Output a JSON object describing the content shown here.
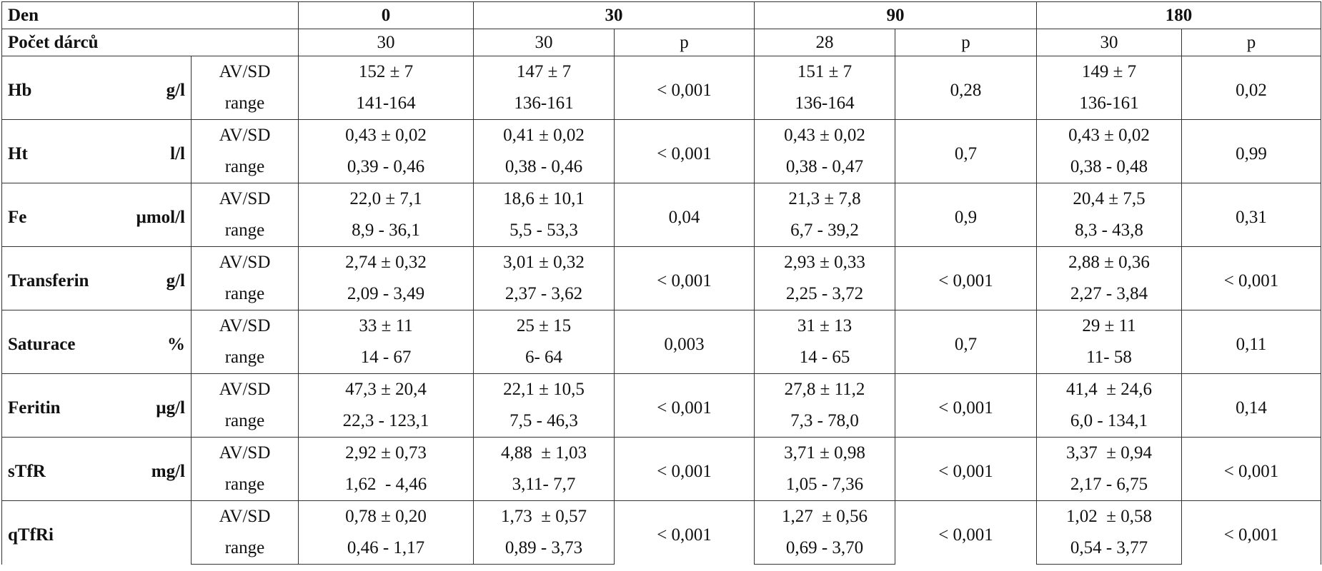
{
  "header": {
    "first": "Den",
    "days": [
      "0",
      "30",
      "90",
      "180"
    ]
  },
  "count_row": {
    "label": "Počet dárců",
    "cells": [
      "30",
      "30",
      "p",
      "28",
      "p",
      "30",
      "p"
    ]
  },
  "params": [
    {
      "name": "Hb",
      "unit": "g/l",
      "av": {
        "label": "AV/SD",
        "values": [
          "152 ± 7",
          "147 ± 7",
          "151 ± 7",
          "149 ± 7"
        ],
        "p": [
          "< 0,001",
          "0,28",
          "0,02"
        ]
      },
      "range": {
        "label": "range",
        "values": [
          "141-164",
          "136-161",
          "136-164",
          "136-161"
        ]
      }
    },
    {
      "name": "Ht",
      "unit": "l/l",
      "av": {
        "label": "AV/SD",
        "values": [
          "0,43 ± 0,02",
          "0,41 ± 0,02",
          "0,43 ± 0,02",
          "0,43 ± 0,02"
        ],
        "p": [
          "< 0,001",
          "0,7",
          "0,99"
        ]
      },
      "range": {
        "label": "range",
        "values": [
          "0,39 - 0,46",
          "0,38 - 0,46",
          "0,38 - 0,47",
          "0,38 - 0,48"
        ]
      }
    },
    {
      "name": "Fe",
      "unit": "μmol/l",
      "av": {
        "label": "AV/SD",
        "values": [
          "22,0 ± 7,1",
          "18,6 ± 10,1",
          "21,3 ± 7,8",
          "20,4 ± 7,5"
        ],
        "p": [
          "0,04",
          "0,9",
          "0,31"
        ]
      },
      "range": {
        "label": "range",
        "values": [
          "8,9 - 36,1",
          "5,5 - 53,3",
          "6,7 - 39,2",
          "8,3 - 43,8"
        ]
      }
    },
    {
      "name": "Transferin",
      "unit": "g/l",
      "av": {
        "label": "AV/SD",
        "values": [
          "2,74 ± 0,32",
          "3,01 ± 0,32",
          "2,93 ± 0,33",
          "2,88 ± 0,36"
        ],
        "p": [
          "< 0,001",
          "< 0,001",
          "< 0,001"
        ]
      },
      "range": {
        "label": "range",
        "values": [
          "2,09 - 3,49",
          "2,37 - 3,62",
          "2,25 - 3,72",
          "2,27 - 3,84"
        ]
      }
    },
    {
      "name": "Saturace",
      "unit": "%",
      "av": {
        "label": "AV/SD",
        "values": [
          "33 ± 11",
          "25 ± 15",
          "31 ± 13",
          "29 ± 11"
        ],
        "p": [
          "0,003",
          "0,7",
          "0,11"
        ]
      },
      "range": {
        "label": "range",
        "values": [
          "14 - 67",
          "6- 64",
          "14 - 65",
          "11- 58"
        ]
      }
    },
    {
      "name": "Feritin",
      "unit": "μg/l",
      "av": {
        "label": "AV/SD",
        "values": [
          "47,3 ± 20,4",
          "22,1 ± 10,5",
          "27,8 ± 11,2",
          "41,4  ± 24,6"
        ],
        "p": [
          "< 0,001",
          "< 0,001",
          "0,14"
        ]
      },
      "range": {
        "label": "range",
        "values": [
          "22,3 - 123,1",
          "7,5 - 46,3",
          "7,3 - 78,0",
          "6,0 - 134,1"
        ]
      }
    },
    {
      "name": "sTfR",
      "unit": "mg/l",
      "av": {
        "label": "AV/SD",
        "values": [
          "2,92 ± 0,73",
          "4,88  ± 1,03",
          "3,71 ± 0,98",
          "3,37  ± 0,94"
        ],
        "p": [
          "< 0,001",
          "< 0,001",
          "< 0,001"
        ]
      },
      "range": {
        "label": "range",
        "values": [
          "1,62  - 4,46",
          "3,11- 7,7",
          "1,05 - 7,36",
          "2,17 - 6,75"
        ]
      }
    },
    {
      "name": "qTfRi",
      "unit": "",
      "av": {
        "label": "AV/SD",
        "values": [
          "0,78 ± 0,20",
          "1,73  ± 0,57",
          "1,27  ± 0,56",
          "1,02  ± 0,58"
        ],
        "p": [
          "< 0,001",
          "< 0,001",
          "< 0,001"
        ]
      },
      "range": {
        "label": "range",
        "values": [
          "0,46 - 1,17",
          "0,89 - 3,73",
          "0,69 - 3,70",
          "0,54 - 3,77"
        ]
      }
    }
  ]
}
